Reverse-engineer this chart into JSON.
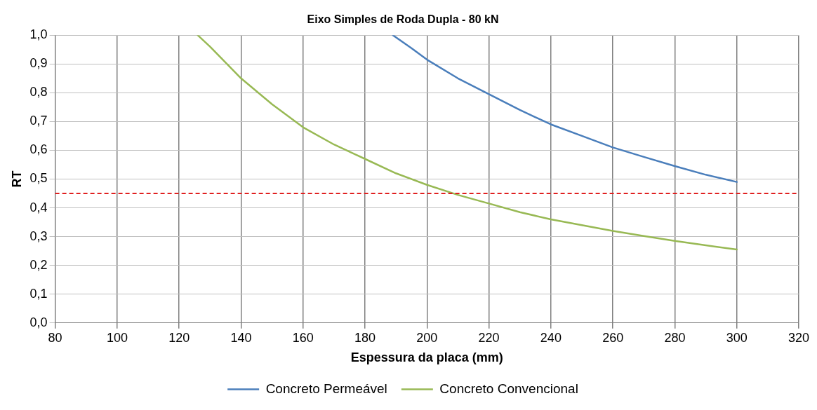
{
  "chart_data": {
    "type": "line",
    "title": "Eixo Simples de Roda Dupla - 80 kN",
    "xlabel": "Espessura da placa (mm)",
    "ylabel": "RT",
    "series": [
      {
        "name": "Concreto Permeável",
        "color": "#4a7ebb",
        "x": [
          189,
          195,
          200,
          210,
          220,
          230,
          240,
          250,
          260,
          270,
          280,
          290,
          300
        ],
        "values": [
          1.0,
          0.955,
          0.915,
          0.85,
          0.795,
          0.74,
          0.69,
          0.65,
          0.61,
          0.577,
          0.545,
          0.515,
          0.49
        ]
      },
      {
        "name": "Concreto Convencional",
        "color": "#98b954",
        "x": [
          126,
          130,
          140,
          150,
          160,
          170,
          180,
          190,
          200,
          210,
          220,
          230,
          240,
          250,
          260,
          270,
          280,
          290,
          300
        ],
        "values": [
          1.0,
          0.96,
          0.85,
          0.76,
          0.68,
          0.62,
          0.57,
          0.52,
          0.48,
          0.445,
          0.415,
          0.385,
          0.36,
          0.34,
          0.32,
          0.302,
          0.285,
          0.27,
          0.255
        ]
      }
    ],
    "xlim": [
      80,
      320
    ],
    "xticks": [
      80,
      100,
      120,
      140,
      160,
      180,
      200,
      220,
      240,
      260,
      280,
      300,
      320
    ],
    "ylim": [
      0,
      1
    ],
    "yticks": [
      {
        "value": 0,
        "label": "0,0"
      },
      {
        "value": 0.1,
        "label": "0,1"
      },
      {
        "value": 0.2,
        "label": "0,2"
      },
      {
        "value": 0.3,
        "label": "0,3"
      },
      {
        "value": 0.4,
        "label": "0,4"
      },
      {
        "value": 0.5,
        "label": "0,5"
      },
      {
        "value": 0.6,
        "label": "0,6"
      },
      {
        "value": 0.7,
        "label": "0,7"
      },
      {
        "value": 0.8,
        "label": "0,8"
      },
      {
        "value": 0.9,
        "label": "0,9"
      },
      {
        "value": 1,
        "label": "1,0"
      }
    ],
    "ref_lines": [
      {
        "axis": "y",
        "value": 0.45,
        "color": "#e02020",
        "line_style": "dashed"
      }
    ],
    "grid": true,
    "legend": "bottom",
    "marker": "none",
    "line_style": "solid"
  }
}
